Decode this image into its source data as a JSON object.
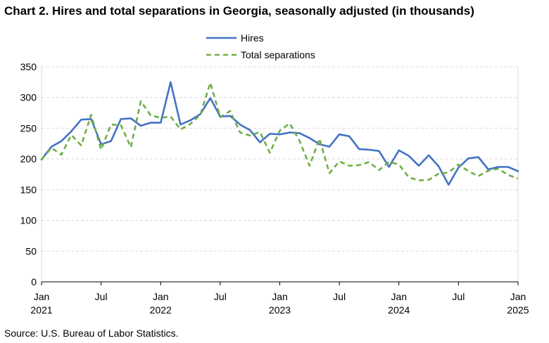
{
  "title": "Chart 2. Hires and total separations in Georgia, seasonally adjusted (in thousands)",
  "source": "Source: U.S. Bureau of Labor Statistics.",
  "chart_data": {
    "type": "line",
    "title": "Chart 2. Hires and total separations in Georgia, seasonally adjusted (in thousands)",
    "xlabel": "",
    "ylabel": "",
    "ylim": [
      0,
      350
    ],
    "yticks": [
      0,
      50,
      100,
      150,
      200,
      250,
      300,
      350
    ],
    "grid": true,
    "legend_position": "top",
    "x_tick_labels": [
      {
        "month": "Jan",
        "year": "2021"
      },
      {
        "month": "Jul",
        "year": ""
      },
      {
        "month": "Jan",
        "year": "2022"
      },
      {
        "month": "Jul",
        "year": ""
      },
      {
        "month": "Jan",
        "year": "2023"
      },
      {
        "month": "Jul",
        "year": ""
      },
      {
        "month": "Jan",
        "year": "2024"
      },
      {
        "month": "Jul",
        "year": ""
      },
      {
        "month": "Jan",
        "year": "2025"
      }
    ],
    "x": [
      "2021-01",
      "2021-02",
      "2021-03",
      "2021-04",
      "2021-05",
      "2021-06",
      "2021-07",
      "2021-08",
      "2021-09",
      "2021-10",
      "2021-11",
      "2021-12",
      "2022-01",
      "2022-02",
      "2022-03",
      "2022-04",
      "2022-05",
      "2022-06",
      "2022-07",
      "2022-08",
      "2022-09",
      "2022-10",
      "2022-11",
      "2022-12",
      "2023-01",
      "2023-02",
      "2023-03",
      "2023-04",
      "2023-05",
      "2023-06",
      "2023-07",
      "2023-08",
      "2023-09",
      "2023-10",
      "2023-11",
      "2023-12",
      "2024-01",
      "2024-02",
      "2024-03",
      "2024-04",
      "2024-05",
      "2024-06",
      "2024-07",
      "2024-08",
      "2024-09",
      "2024-10",
      "2024-11",
      "2024-12",
      "2025-01"
    ],
    "series": [
      {
        "name": "Hires",
        "color": "#4472c4",
        "style": "solid",
        "values": [
          199,
          220,
          229,
          245,
          264,
          265,
          224,
          229,
          265,
          266,
          254,
          259,
          259,
          325,
          256,
          263,
          273,
          299,
          269,
          270,
          256,
          247,
          227,
          241,
          240,
          243,
          242,
          234,
          224,
          220,
          240,
          237,
          216,
          215,
          213,
          187,
          214,
          205,
          189,
          206,
          188,
          158,
          186,
          201,
          203,
          183,
          187,
          187,
          180
        ]
      },
      {
        "name": "Total separations",
        "color": "#70ad47",
        "style": "dashed",
        "values": [
          199,
          218,
          207,
          239,
          222,
          272,
          215,
          256,
          255,
          219,
          294,
          271,
          267,
          269,
          248,
          257,
          272,
          324,
          268,
          278,
          243,
          238,
          244,
          210,
          246,
          258,
          229,
          189,
          233,
          177,
          196,
          189,
          190,
          195,
          182,
          195,
          191,
          170,
          165,
          166,
          176,
          178,
          191,
          180,
          172,
          181,
          184,
          174,
          168
        ]
      }
    ]
  }
}
